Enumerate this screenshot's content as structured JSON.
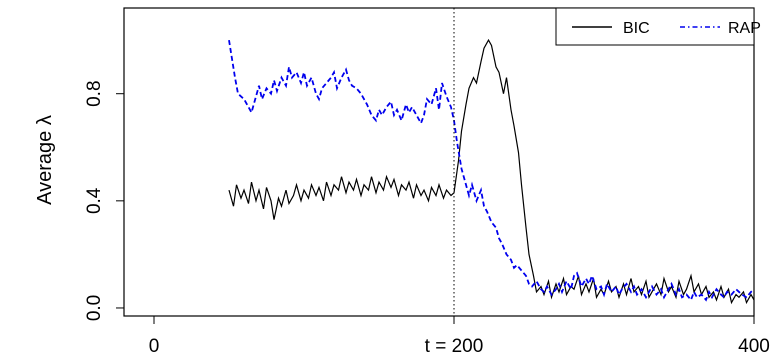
{
  "chart_data": {
    "type": "line",
    "ylabel": "Average λ",
    "xlim": [
      -20,
      400
    ],
    "ylim": [
      -0.03,
      1.12
    ],
    "x_ticks": [
      {
        "value": 0,
        "label": "0"
      },
      {
        "value": 200,
        "label": "t = 200"
      },
      {
        "value": 400,
        "label": "400"
      }
    ],
    "y_ticks": [
      {
        "value": 0.0,
        "label": "0.0"
      },
      {
        "value": 0.4,
        "label": "0.4"
      },
      {
        "value": 0.8,
        "label": "0.8"
      }
    ],
    "reference_line": {
      "x": 200,
      "style": "dotted"
    },
    "legend": {
      "position": "top-right"
    },
    "series": [
      {
        "name": "BIC",
        "color": "#000000",
        "dash": "solid",
        "x": [
          50,
          53,
          55,
          58,
          60,
          63,
          65,
          68,
          70,
          73,
          75,
          78,
          80,
          83,
          85,
          88,
          90,
          93,
          95,
          98,
          100,
          103,
          105,
          108,
          110,
          113,
          115,
          118,
          120,
          123,
          125,
          128,
          130,
          133,
          135,
          138,
          140,
          143,
          145,
          148,
          150,
          153,
          155,
          158,
          160,
          163,
          165,
          168,
          170,
          173,
          175,
          178,
          180,
          183,
          185,
          188,
          190,
          193,
          195,
          198,
          200,
          203,
          205,
          208,
          210,
          213,
          215,
          218,
          220,
          223,
          225,
          228,
          230,
          233,
          235,
          238,
          240,
          243,
          245,
          248,
          250,
          253,
          255,
          258,
          260,
          263,
          265,
          268,
          270,
          273,
          275,
          278,
          280,
          283,
          285,
          288,
          290,
          293,
          295,
          298,
          300,
          303,
          305,
          308,
          310,
          313,
          315,
          318,
          320,
          323,
          325,
          328,
          330,
          333,
          335,
          338,
          340,
          343,
          345,
          348,
          350,
          353,
          355,
          358,
          360,
          363,
          365,
          368,
          370,
          373,
          375,
          378,
          380,
          383,
          385,
          388,
          390,
          393,
          395,
          398,
          400
        ],
        "values": [
          0.44,
          0.38,
          0.46,
          0.41,
          0.44,
          0.39,
          0.47,
          0.4,
          0.44,
          0.37,
          0.45,
          0.4,
          0.33,
          0.41,
          0.38,
          0.44,
          0.39,
          0.42,
          0.46,
          0.4,
          0.44,
          0.41,
          0.46,
          0.42,
          0.45,
          0.4,
          0.47,
          0.42,
          0.46,
          0.44,
          0.49,
          0.43,
          0.47,
          0.44,
          0.48,
          0.42,
          0.46,
          0.44,
          0.49,
          0.43,
          0.47,
          0.44,
          0.49,
          0.45,
          0.48,
          0.42,
          0.46,
          0.44,
          0.47,
          0.41,
          0.46,
          0.42,
          0.44,
          0.4,
          0.45,
          0.42,
          0.46,
          0.41,
          0.44,
          0.42,
          0.43,
          0.55,
          0.66,
          0.76,
          0.82,
          0.86,
          0.84,
          0.92,
          0.97,
          1.0,
          0.98,
          0.9,
          0.88,
          0.8,
          0.86,
          0.74,
          0.68,
          0.58,
          0.46,
          0.3,
          0.2,
          0.12,
          0.06,
          0.08,
          0.05,
          0.1,
          0.04,
          0.09,
          0.06,
          0.11,
          0.05,
          0.08,
          0.07,
          0.12,
          0.05,
          0.09,
          0.06,
          0.11,
          0.04,
          0.07,
          0.05,
          0.1,
          0.06,
          0.08,
          0.04,
          0.09,
          0.05,
          0.11,
          0.06,
          0.08,
          0.05,
          0.1,
          0.04,
          0.07,
          0.09,
          0.05,
          0.11,
          0.06,
          0.08,
          0.04,
          0.1,
          0.05,
          0.07,
          0.12,
          0.06,
          0.09,
          0.05,
          0.08,
          0.04,
          0.06,
          0.03,
          0.08,
          0.04,
          0.07,
          0.02,
          0.05,
          0.04,
          0.06,
          0.02,
          0.05,
          0.03
        ]
      },
      {
        "name": "RAP",
        "color": "#0000ee",
        "dash": "dashed",
        "x": [
          50,
          52,
          54,
          56,
          60,
          62,
          65,
          68,
          70,
          72,
          75,
          78,
          80,
          82,
          85,
          88,
          90,
          92,
          95,
          98,
          100,
          102,
          105,
          108,
          110,
          112,
          115,
          118,
          120,
          122,
          125,
          128,
          130,
          132,
          135,
          138,
          140,
          142,
          145,
          148,
          150,
          152,
          155,
          158,
          160,
          162,
          165,
          168,
          170,
          172,
          175,
          178,
          180,
          182,
          185,
          188,
          190,
          192,
          195,
          198,
          200,
          202,
          205,
          208,
          210,
          212,
          215,
          218,
          220,
          222,
          225,
          228,
          230,
          232,
          235,
          238,
          240,
          242,
          245,
          248,
          250,
          252,
          255,
          258,
          260,
          262,
          265,
          268,
          270,
          272,
          275,
          278,
          280,
          282,
          285,
          288,
          290,
          292,
          295,
          298,
          300,
          302,
          305,
          308,
          310,
          312,
          315,
          318,
          320,
          322,
          325,
          328,
          330,
          332,
          335,
          338,
          340,
          342,
          345,
          348,
          350,
          352,
          355,
          358,
          360,
          362,
          365,
          368,
          370,
          372,
          375,
          378,
          380,
          382,
          385,
          388,
          390,
          392,
          395,
          398,
          400
        ],
        "values": [
          1.0,
          0.93,
          0.86,
          0.8,
          0.78,
          0.76,
          0.73,
          0.79,
          0.83,
          0.78,
          0.82,
          0.8,
          0.85,
          0.81,
          0.86,
          0.83,
          0.9,
          0.86,
          0.88,
          0.84,
          0.88,
          0.83,
          0.86,
          0.8,
          0.78,
          0.82,
          0.84,
          0.86,
          0.88,
          0.82,
          0.86,
          0.89,
          0.85,
          0.83,
          0.82,
          0.8,
          0.78,
          0.76,
          0.72,
          0.7,
          0.74,
          0.72,
          0.75,
          0.77,
          0.72,
          0.74,
          0.7,
          0.76,
          0.73,
          0.75,
          0.72,
          0.69,
          0.72,
          0.78,
          0.76,
          0.82,
          0.74,
          0.84,
          0.79,
          0.75,
          0.7,
          0.62,
          0.52,
          0.46,
          0.42,
          0.46,
          0.4,
          0.44,
          0.38,
          0.36,
          0.32,
          0.3,
          0.26,
          0.24,
          0.2,
          0.18,
          0.15,
          0.16,
          0.14,
          0.12,
          0.09,
          0.08,
          0.1,
          0.07,
          0.06,
          0.08,
          0.05,
          0.07,
          0.09,
          0.06,
          0.1,
          0.07,
          0.12,
          0.13,
          0.08,
          0.11,
          0.09,
          0.12,
          0.07,
          0.08,
          0.05,
          0.09,
          0.06,
          0.08,
          0.05,
          0.07,
          0.09,
          0.06,
          0.08,
          0.05,
          0.07,
          0.04,
          0.06,
          0.08,
          0.05,
          0.07,
          0.04,
          0.06,
          0.09,
          0.05,
          0.07,
          0.04,
          0.05,
          0.03,
          0.06,
          0.04,
          0.05,
          0.03,
          0.06,
          0.04,
          0.07,
          0.05,
          0.04,
          0.06,
          0.05,
          0.07,
          0.06,
          0.05,
          0.04,
          0.06,
          0.07
        ]
      }
    ]
  }
}
